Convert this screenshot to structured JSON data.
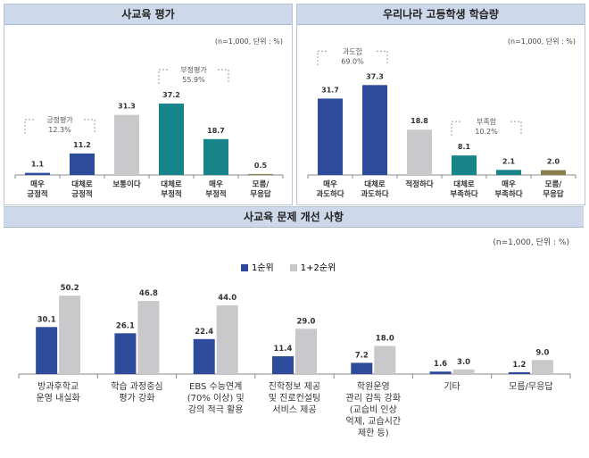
{
  "chart_data": [
    {
      "type": "bar",
      "title": "사교육 평가",
      "unit": "(n=1,000, 단위 : %)",
      "categories": [
        [
          "매우",
          "긍정적"
        ],
        [
          "대체로",
          "긍정적"
        ],
        [
          "보통이다"
        ],
        [
          "대체로",
          "부정적"
        ],
        [
          "매우",
          "부정적"
        ],
        [
          "모름/",
          "무응답"
        ]
      ],
      "values": [
        1.1,
        11.2,
        31.3,
        37.2,
        18.7,
        0.5
      ],
      "labels": [
        "1.1",
        "11.2",
        "31.3",
        "37.2",
        "18.7",
        "0.5"
      ],
      "colors": [
        "#2e4a9a",
        "#2e4a9a",
        "#c9c9cb",
        "#17848a",
        "#17848a",
        "#8a7f4a"
      ],
      "annotations": [
        {
          "text": [
            "긍정평가",
            "12.3%"
          ],
          "span": [
            0,
            1
          ]
        },
        {
          "text": [
            "부정평가",
            "55.9%"
          ],
          "span": [
            3,
            4
          ]
        }
      ]
    },
    {
      "type": "bar",
      "title": "우리나라 고등학생 학습량",
      "unit": "(n=1,000, 단위 : %)",
      "categories": [
        [
          "매우",
          "과도하다"
        ],
        [
          "대체로",
          "과도하다"
        ],
        [
          "적정하다"
        ],
        [
          "대체로",
          "부족하다"
        ],
        [
          "매우",
          "부족하다"
        ],
        [
          "모름/",
          "무응답"
        ]
      ],
      "values": [
        31.7,
        37.3,
        18.8,
        8.1,
        2.1,
        2.0
      ],
      "labels": [
        "31.7",
        "37.3",
        "18.8",
        "8.1",
        "2.1",
        "2.0"
      ],
      "colors": [
        "#2e4a9a",
        "#2e4a9a",
        "#c9c9cb",
        "#17848a",
        "#17848a",
        "#8a7f4a"
      ],
      "annotations": [
        {
          "text": [
            "과도함",
            "69.0%"
          ],
          "span": [
            0,
            1
          ]
        },
        {
          "text": [
            "부족함",
            "10.2%"
          ],
          "span": [
            3,
            4
          ]
        }
      ]
    },
    {
      "type": "bar",
      "title": "사교육 문제 개선 사항",
      "unit": "(n=1,000, 단위 : %)",
      "categories": [
        [
          "방과후학교",
          "운영 내실화"
        ],
        [
          "학습 과정중심",
          "평가 강화"
        ],
        [
          "EBS 수능연계",
          "(70% 이상) 및",
          "강의 적극 활용"
        ],
        [
          "진학정보 제공",
          "및 진로컨설팅",
          "서비스 제공"
        ],
        [
          "학원운영",
          "관리 감독 강화",
          "(교습비 인상",
          "억제, 교습시간",
          "제한 등)"
        ],
        [
          "기타"
        ],
        [
          "모름/무응답"
        ]
      ],
      "series": [
        {
          "name": "1순위",
          "color": "#2e4a9a",
          "values": [
            30.1,
            26.1,
            22.4,
            11.4,
            7.2,
            1.6,
            1.2
          ],
          "labels": [
            "30.1",
            "26.1",
            "22.4",
            "11.4",
            "7.2",
            "1.6",
            "1.2"
          ]
        },
        {
          "name": "1+2순위",
          "color": "#c9c9cb",
          "values": [
            50.2,
            46.8,
            44.0,
            29.0,
            18.0,
            3.0,
            9.0
          ],
          "labels": [
            "50.2",
            "46.8",
            "44.0",
            "29.0",
            "18.0",
            "3.0",
            "9.0"
          ]
        }
      ],
      "legend": "top-center"
    }
  ]
}
